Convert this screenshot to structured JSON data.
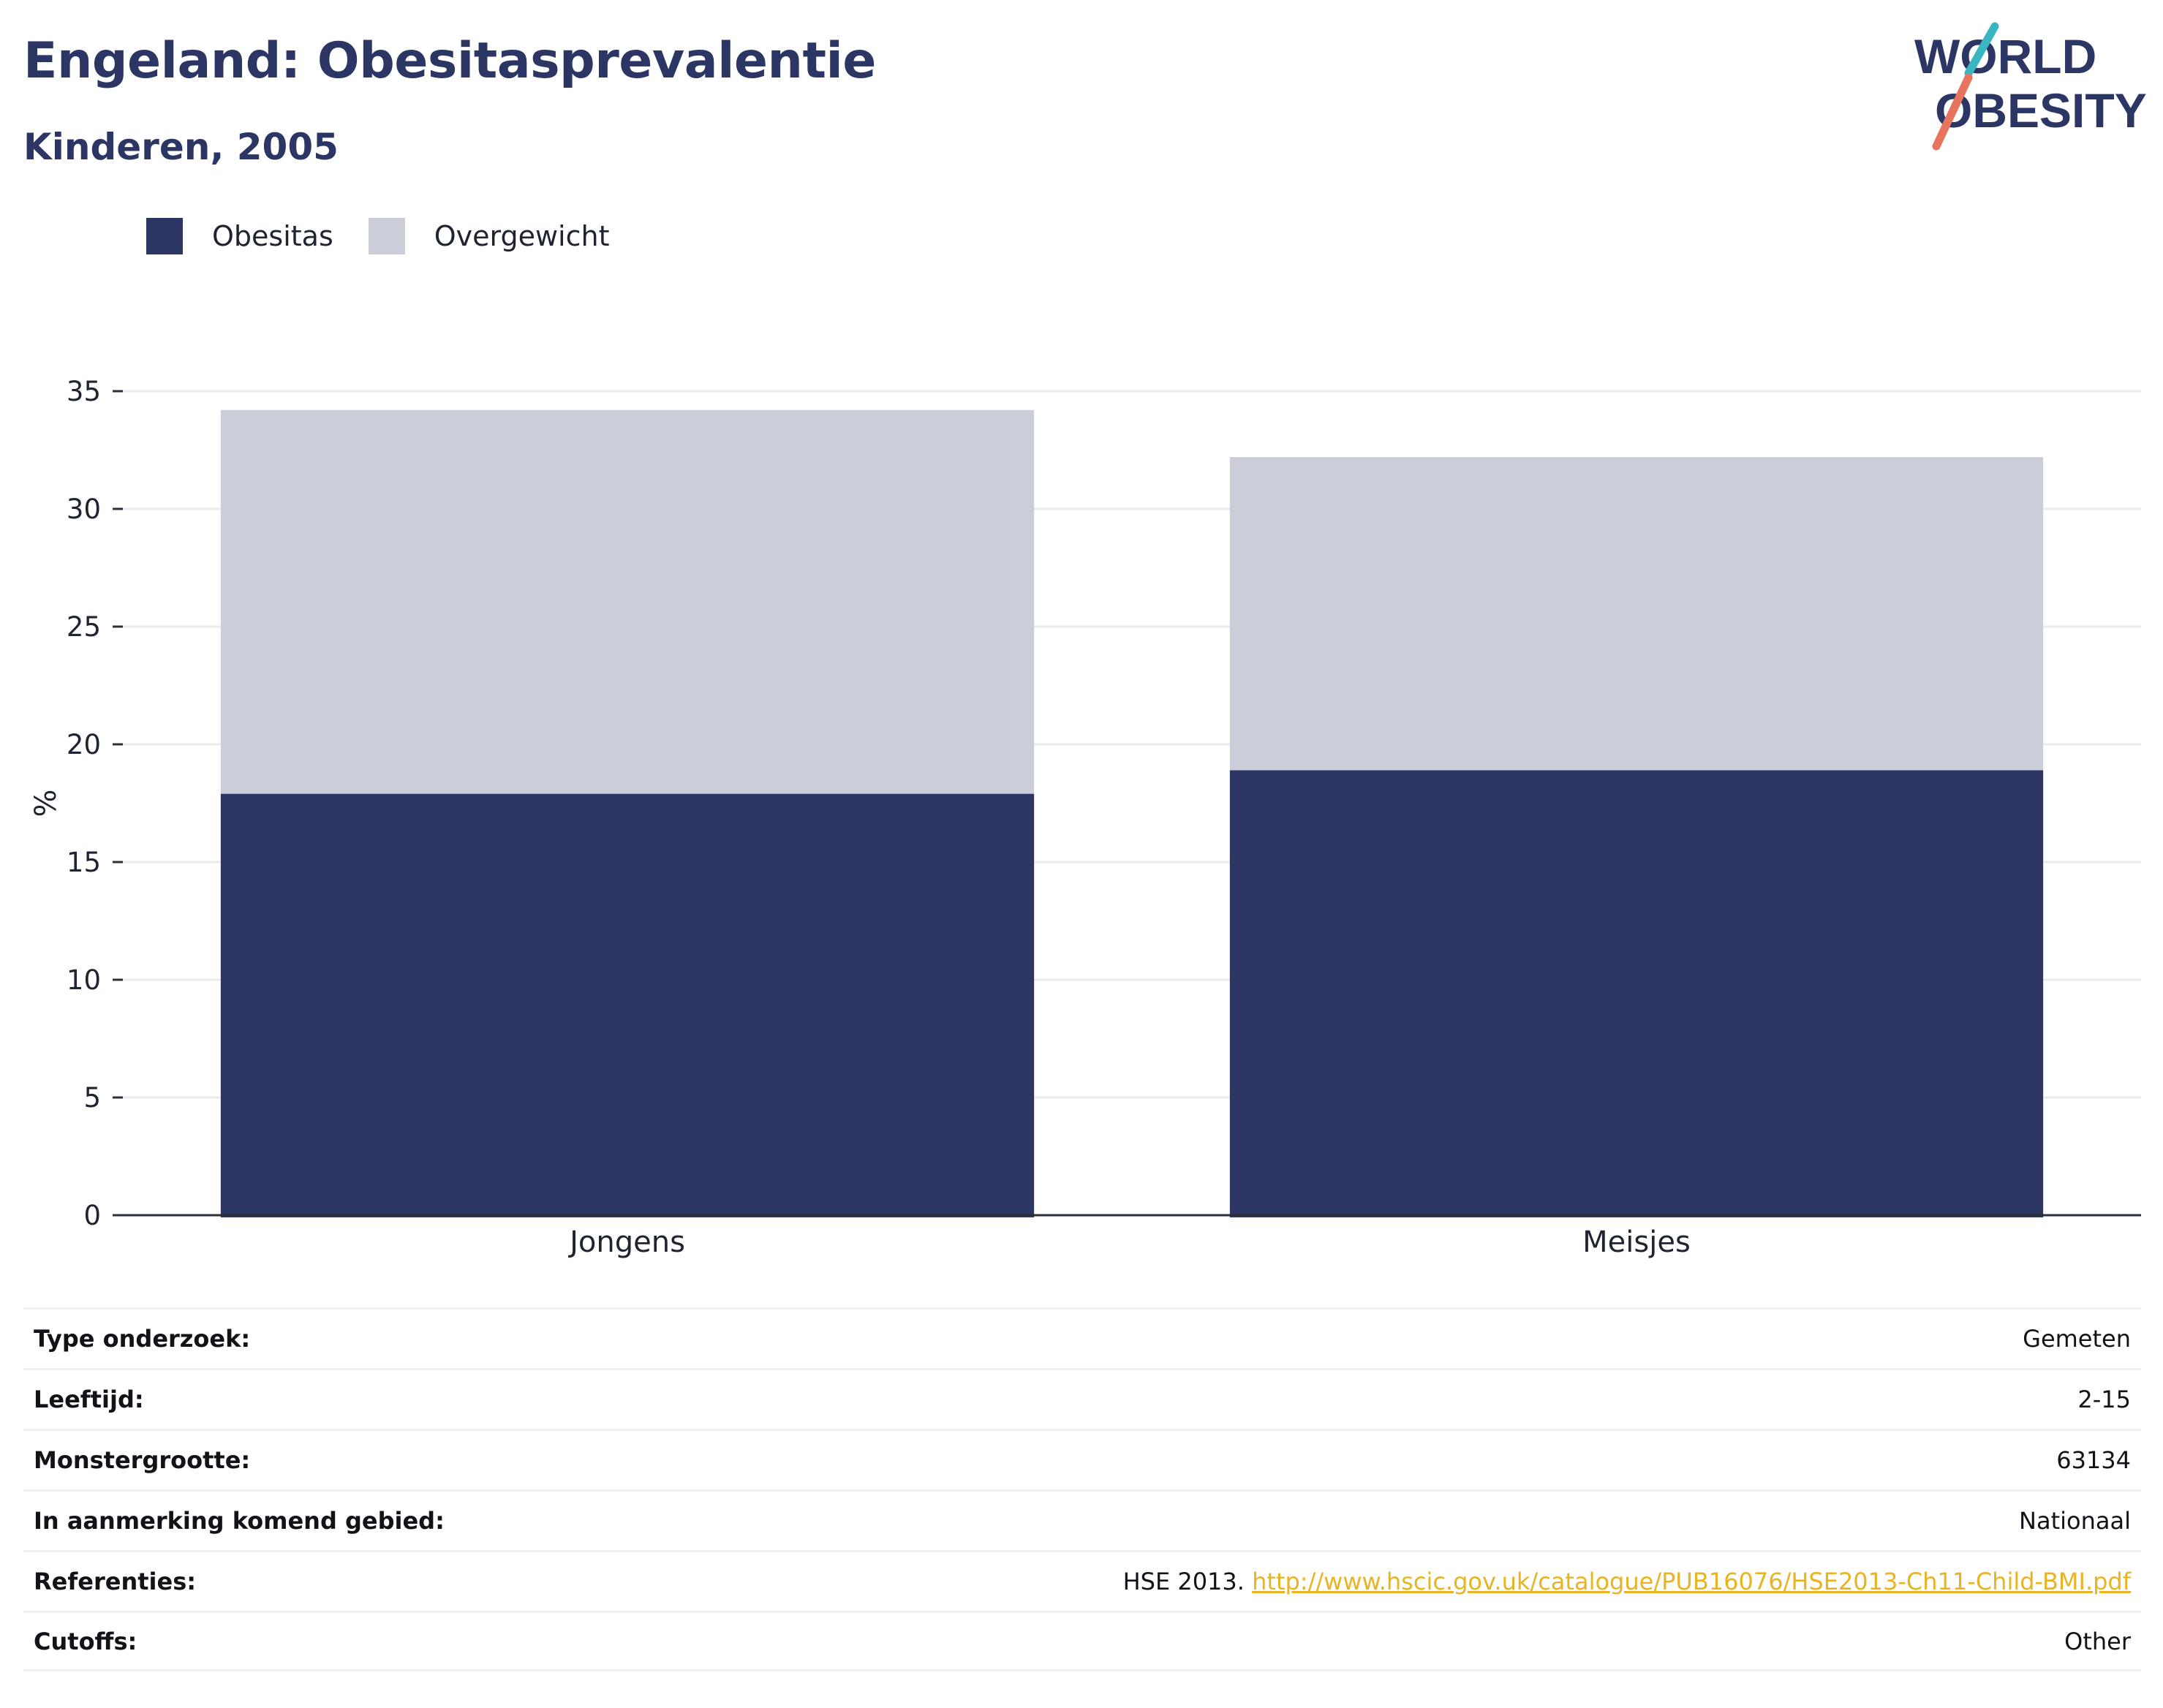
{
  "header": {
    "title": "Engeland: Obesitasprevalentie",
    "subtitle": "Kinderen, 2005"
  },
  "logo": {
    "line1_a": "W",
    "line1_o": "O",
    "line1_b": "RLD",
    "line2_o": "O",
    "line2_b": "BESITY",
    "colors": {
      "navy": "#2b3664",
      "teal": "#3ab6c3",
      "coral": "#e8735f"
    }
  },
  "chart_data": {
    "type": "bar",
    "stacked": true,
    "categories": [
      "Jongens",
      "Meisjes"
    ],
    "series": [
      {
        "name": "Obesitas",
        "values": [
          17.9,
          18.9
        ],
        "color": "#2b3664"
      },
      {
        "name": "Overgewicht",
        "values": [
          16.3,
          13.3
        ],
        "color": "#cbcdd8"
      }
    ],
    "ylabel": "%",
    "ylim": [
      0,
      35
    ],
    "yticks": [
      0,
      5,
      10,
      15,
      20,
      25,
      30,
      35
    ],
    "grid": true,
    "legend_position": "top-left"
  },
  "info_table": [
    {
      "label": "Type onderzoek:",
      "value": "Gemeten"
    },
    {
      "label": "Leeftijd:",
      "value": "2-15"
    },
    {
      "label": "Monstergrootte:",
      "value": "63134"
    },
    {
      "label": "In aanmerking komend gebied:",
      "value": "Nationaal"
    },
    {
      "label": "Referenties:",
      "value_prefix": "HSE 2013. ",
      "value_link": "http://www.hscic.gov.uk/catalogue/PUB16076/HSE2013-Ch11-Child-BMI.pdf"
    },
    {
      "label": "Cutoffs:",
      "value": "Other"
    }
  ]
}
